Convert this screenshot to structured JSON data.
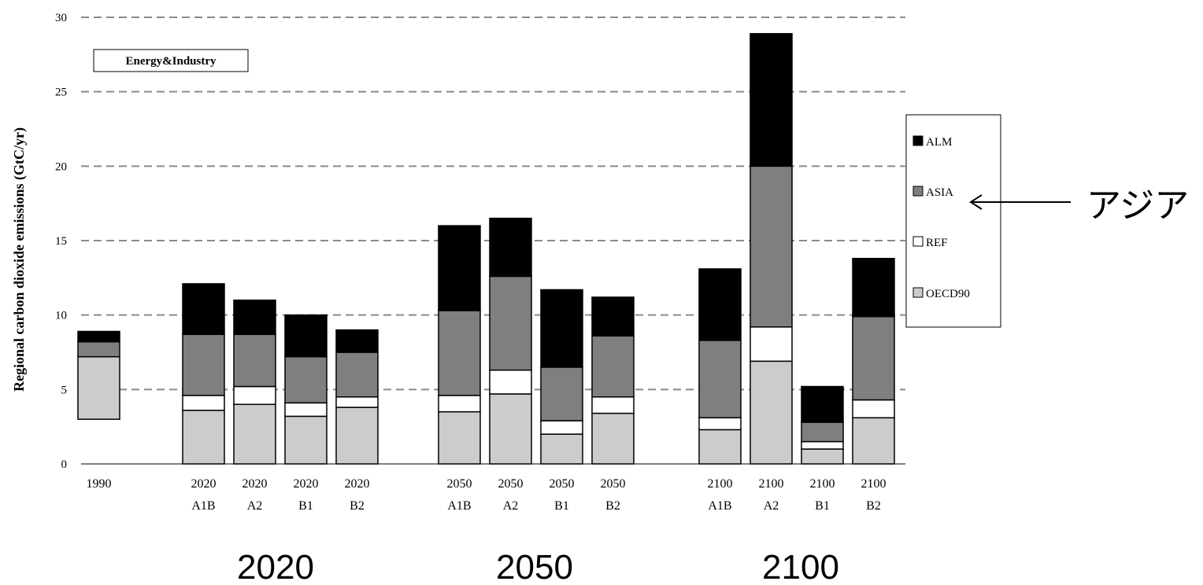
{
  "chart_data": {
    "type": "bar",
    "stacked": true,
    "ylabel": "Regional carbon dioxide emissions (GtC/yr)",
    "ylim": [
      0,
      30
    ],
    "yticks": [
      0,
      5,
      10,
      15,
      20,
      25,
      30
    ],
    "grid": true,
    "legend_position": "right",
    "annotation_box": "Energy&Industry",
    "categories": [
      [
        "1990",
        ""
      ],
      [
        "2020",
        "A1B"
      ],
      [
        "2020",
        "A2"
      ],
      [
        "2020",
        "B1"
      ],
      [
        "2020",
        "B2"
      ],
      [
        "2050",
        "A1B"
      ],
      [
        "2050",
        "A2"
      ],
      [
        "2050",
        "B1"
      ],
      [
        "2050",
        "B2"
      ],
      [
        "2100",
        "A1B"
      ],
      [
        "2100",
        "A2"
      ],
      [
        "2100",
        "B1"
      ],
      [
        "2100",
        "B2"
      ]
    ],
    "group_index": [
      0,
      1,
      1,
      1,
      1,
      2,
      2,
      2,
      2,
      3,
      3,
      3,
      3
    ],
    "series": [
      {
        "name": "OECD90",
        "color": "#cccccc",
        "values": [
          4.2,
          3.6,
          4.0,
          3.2,
          3.8,
          3.5,
          4.7,
          2.0,
          3.4,
          2.3,
          6.9,
          1.0,
          3.1
        ]
      },
      {
        "name": "REF",
        "color": "#ffffff",
        "values": [
          0.0,
          1.0,
          1.2,
          0.9,
          0.7,
          1.1,
          1.6,
          0.9,
          1.1,
          0.8,
          2.3,
          0.5,
          1.2
        ]
      },
      {
        "name": "ASIA",
        "color": "#7f7f7f",
        "values": [
          1.0,
          4.1,
          3.5,
          3.1,
          3.0,
          5.7,
          6.3,
          3.6,
          4.1,
          5.2,
          10.8,
          1.3,
          5.6
        ]
      },
      {
        "name": "ALM",
        "color": "#000000",
        "values": [
          0.7,
          3.4,
          2.3,
          2.8,
          1.5,
          5.7,
          3.9,
          5.2,
          2.6,
          4.8,
          8.9,
          2.4,
          3.9
        ]
      }
    ],
    "legend_order": [
      "ALM",
      "ASIA",
      "REF",
      "OECD90"
    ]
  },
  "annotations": {
    "arrow_label": "アジア",
    "period_labels": [
      "2020",
      "2050",
      "2100"
    ]
  }
}
